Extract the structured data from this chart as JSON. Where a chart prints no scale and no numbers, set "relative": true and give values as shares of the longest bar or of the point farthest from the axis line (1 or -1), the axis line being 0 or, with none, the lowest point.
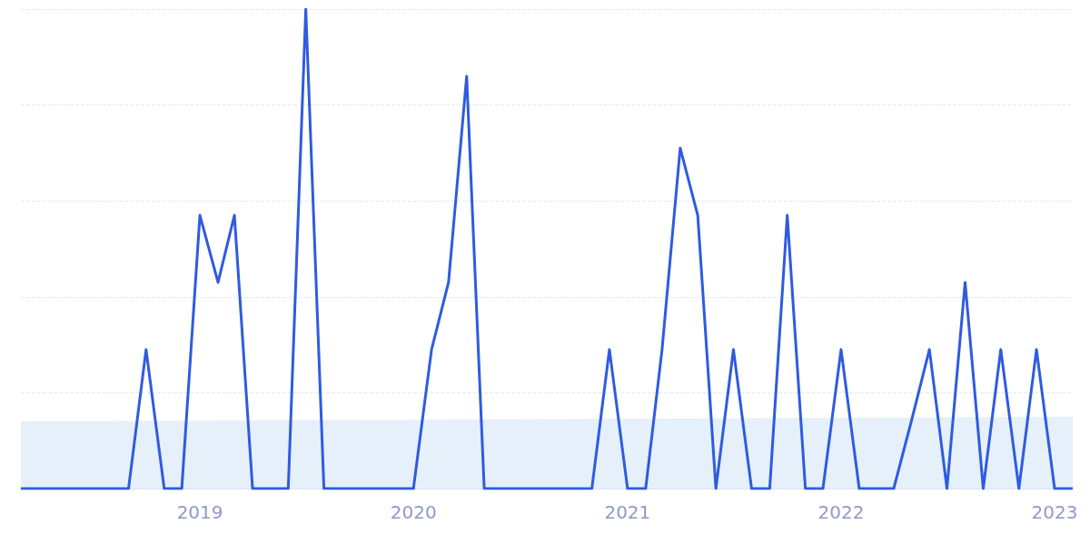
{
  "chart_data": {
    "type": "line",
    "relative": true,
    "grid": "y",
    "marker": "none",
    "line_style": "solid",
    "xlim": [
      "2018-03",
      "2023-02"
    ],
    "xticks": [
      "2019",
      "2020",
      "2021",
      "2022",
      "2023"
    ],
    "series": [
      {
        "type": "area",
        "color": "#e3eefb",
        "x": [
          "2018-03",
          "2023-02"
        ],
        "values": [
          0.14,
          0.15
        ]
      },
      {
        "color": "#2f5be0",
        "x": [
          "2018-03",
          "2018-04",
          "2018-05",
          "2018-06",
          "2018-07",
          "2018-08",
          "2018-09",
          "2018-10",
          "2018-11",
          "2018-12",
          "2019-01",
          "2019-02",
          "2019-03",
          "2019-04",
          "2019-05",
          "2019-06",
          "2019-07",
          "2019-08",
          "2019-09",
          "2019-10",
          "2019-11",
          "2019-12",
          "2020-01",
          "2020-02",
          "2020-03",
          "2020-04",
          "2020-05",
          "2020-06",
          "2020-07",
          "2020-08",
          "2020-09",
          "2020-10",
          "2020-11",
          "2020-12",
          "2021-01",
          "2021-02",
          "2021-03",
          "2021-04",
          "2021-05",
          "2021-06",
          "2021-07",
          "2021-08",
          "2021-09",
          "2021-10",
          "2021-11",
          "2021-12",
          "2022-01",
          "2022-02",
          "2022-03",
          "2022-04",
          "2022-05",
          "2022-06",
          "2022-07",
          "2022-08",
          "2022-09",
          "2022-10",
          "2022-11",
          "2022-12",
          "2023-01",
          "2023-02"
        ],
        "values": [
          0,
          0,
          0,
          0,
          0,
          0,
          0,
          0.29,
          0,
          0,
          0.57,
          0.43,
          0.57,
          0,
          0,
          0,
          1,
          0,
          0,
          0,
          0,
          0,
          0,
          0.29,
          0.43,
          0.86,
          0,
          0,
          0,
          0,
          0,
          0,
          0,
          0.29,
          0,
          0,
          0.29,
          0.71,
          0.57,
          0,
          0.29,
          0,
          0,
          0.57,
          0,
          0,
          0.29,
          0,
          0,
          0,
          0.14,
          0.29,
          0,
          0.43,
          0,
          0.29,
          0,
          0.29,
          0,
          0
        ]
      }
    ]
  }
}
